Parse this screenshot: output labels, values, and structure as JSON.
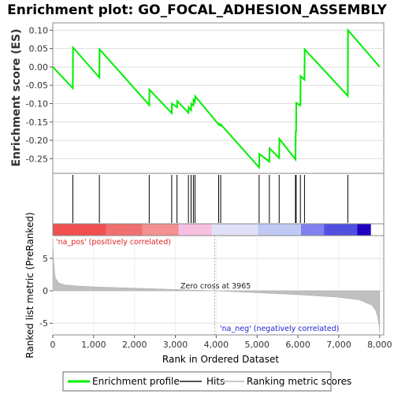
{
  "chart_data": [
    {
      "type": "line",
      "title": "Enrichment plot: GO_FOCAL_ADHESION_ASSEMBLY",
      "ylabel": "Enrichment score (ES)",
      "ylim": [
        -0.29,
        0.12
      ],
      "yticks": [
        0.1,
        0.05,
        0.0,
        -0.05,
        -0.1,
        -0.15,
        -0.2,
        -0.25
      ],
      "ytick_labels": [
        "0.10",
        "0.05",
        "0.00",
        "-0.05",
        "-0.10",
        "-0.15",
        "-0.20",
        "-0.25"
      ],
      "xlim": [
        0,
        8100
      ],
      "series": [
        {
          "name": "Enrichment profile",
          "color": "#00ee00",
          "x": [
            0,
            490,
            495,
            1140,
            1145,
            2360,
            2365,
            2910,
            2915,
            3040,
            3045,
            3320,
            3325,
            3385,
            3390,
            3440,
            3445,
            3480,
            3485,
            4060,
            4065,
            4110,
            4115,
            5050,
            5055,
            5300,
            5305,
            5540,
            5545,
            5940,
            5945,
            5955,
            5960,
            6060,
            6065,
            6160,
            6165,
            7220,
            7225,
            8000
          ],
          "y": [
            0.0,
            -0.058,
            0.053,
            -0.029,
            0.048,
            -0.104,
            -0.062,
            -0.126,
            -0.1,
            -0.11,
            -0.093,
            -0.125,
            -0.11,
            -0.118,
            -0.1,
            -0.105,
            -0.09,
            -0.095,
            -0.08,
            -0.157,
            -0.155,
            -0.16,
            -0.157,
            -0.274,
            -0.237,
            -0.258,
            -0.222,
            -0.248,
            -0.196,
            -0.252,
            -0.175,
            -0.178,
            -0.098,
            -0.105,
            -0.025,
            -0.035,
            0.048,
            -0.079,
            0.1,
            0.0
          ]
        }
      ]
    },
    {
      "type": "scatter",
      "series": [
        {
          "name": "Hits",
          "color": "#000000",
          "x": [
            490,
            1140,
            2360,
            2910,
            3040,
            3320,
            3385,
            3440,
            3480,
            4060,
            4110,
            5050,
            5300,
            5540,
            5940,
            5955,
            6060,
            6160,
            7220
          ]
        }
      ]
    },
    {
      "type": "area",
      "xlabel": "Rank in Ordered Dataset",
      "ylabel": "Ranked list metric (PreRanked)",
      "xlim": [
        0,
        8100
      ],
      "ylim": [
        -6.8,
        8.5
      ],
      "xticks": [
        0,
        1000,
        2000,
        3000,
        4000,
        5000,
        6000,
        7000,
        8000
      ],
      "xtick_labels": [
        "0",
        "1,000",
        "2,000",
        "3,000",
        "4,000",
        "5,000",
        "6,000",
        "7,000",
        "8,000"
      ],
      "yticks": [
        5,
        0,
        -5
      ],
      "ytick_labels": [
        "5",
        "0",
        "-5"
      ],
      "series": [
        {
          "name": "Ranking metric scores",
          "color": "#c0c0c0",
          "x": [
            0,
            20,
            60,
            150,
            300,
            600,
            1000,
            2000,
            3000,
            3965,
            5000,
            6000,
            7000,
            7500,
            7800,
            7900,
            7950,
            7990,
            8000
          ],
          "y": [
            8.0,
            4.5,
            2.0,
            1.2,
            0.9,
            0.75,
            0.6,
            0.4,
            0.2,
            0.0,
            -0.3,
            -0.6,
            -1.0,
            -1.4,
            -2.2,
            -3.0,
            -4.0,
            -5.5,
            -6.5
          ]
        }
      ],
      "annotations": {
        "zero_cross": "Zero cross at 3965",
        "pos_label": "'na_pos' (positively correlated)",
        "neg_label": "'na_neg' (negatively correlated)"
      }
    }
  ],
  "heatmap_colors": [
    "#f05050",
    "#f07070",
    "#f49090",
    "#f8c0e0",
    "#e0e0f8",
    "#c0c8f4",
    "#8080f0",
    "#5050e0",
    "#2000c0"
  ],
  "legend": {
    "items": [
      {
        "label": "Enrichment profile",
        "color": "#00ee00"
      },
      {
        "label": "Hits",
        "color": "#555555"
      },
      {
        "label": "Ranking metric scores",
        "color": "#c8c8c8"
      }
    ]
  }
}
